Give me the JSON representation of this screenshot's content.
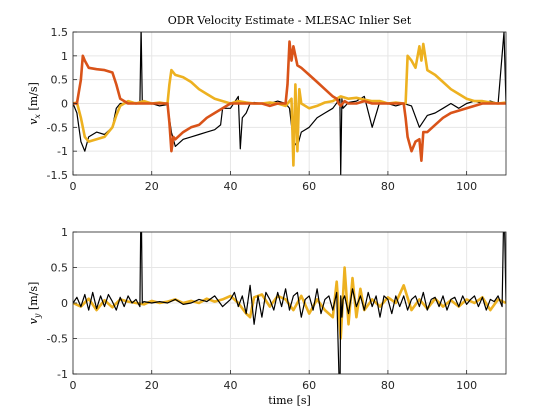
{
  "chart_data": [
    {
      "type": "line",
      "title": "ODR Velocity Estimate - MLESAC Inlier Set",
      "ylabel": "v_x [m/s]",
      "ylabel_main": "v",
      "ylabel_sub": "x",
      "ylabel_unit": "[m/s]",
      "xlabel": "",
      "xlim": [
        0,
        110
      ],
      "ylim": [
        -1.5,
        1.5
      ],
      "xticks": [
        0,
        20,
        40,
        60,
        80,
        100
      ],
      "yticks": [
        -1.5,
        -1,
        -0.5,
        0,
        0.5,
        1,
        1.5
      ],
      "xtick_labels": [
        "0",
        "20",
        "40",
        "60",
        "80",
        "100"
      ],
      "ytick_labels": [
        "-1.5",
        "-1",
        "-0.5",
        "0",
        "0.5",
        "1",
        "1.5"
      ],
      "grid": true,
      "series": [
        {
          "color": "#000000",
          "x": [
            0,
            1,
            2,
            3,
            4,
            6,
            8,
            10,
            11,
            12,
            14,
            16,
            17,
            17.3,
            17.6,
            18,
            20,
            22,
            24,
            25,
            26,
            28,
            30,
            32,
            34,
            36,
            37.5,
            38,
            40,
            42,
            42.5,
            43,
            44,
            45,
            46,
            48,
            50,
            52,
            54,
            55,
            56,
            57,
            58,
            60,
            62,
            64,
            66,
            67.8,
            68,
            68.3,
            68.6,
            70,
            72,
            74,
            76,
            78,
            80,
            82,
            84,
            86,
            88,
            90,
            92,
            94,
            96,
            98,
            100,
            102,
            104,
            106,
            108,
            109.5,
            110
          ],
          "y": [
            0,
            -0.2,
            -0.8,
            -1.0,
            -0.7,
            -0.6,
            -0.65,
            -0.5,
            -0.1,
            0.0,
            0.0,
            0.02,
            0.0,
            1.6,
            0.0,
            0.0,
            0.0,
            -0.05,
            -0.02,
            -0.6,
            -0.9,
            -0.75,
            -0.7,
            -0.65,
            -0.6,
            -0.55,
            -0.45,
            -0.1,
            -0.1,
            0.15,
            -0.95,
            -0.3,
            -0.2,
            0.0,
            0.02,
            0.0,
            0.0,
            0.05,
            0.0,
            -0.1,
            -0.8,
            -0.9,
            -0.6,
            -0.5,
            -0.3,
            -0.2,
            -0.1,
            0.1,
            -1.5,
            0.1,
            -0.1,
            0.02,
            0.05,
            0.15,
            -0.5,
            0.05,
            0.0,
            -0.05,
            0.0,
            -0.05,
            -0.5,
            -0.25,
            -0.2,
            -0.1,
            0.0,
            -0.1,
            0.0,
            0.05,
            0.0,
            0.05,
            0.0,
            1.5,
            0.0
          ]
        },
        {
          "color": "#edb120",
          "x": [
            0,
            1,
            2,
            3,
            4,
            6,
            8,
            10,
            11,
            12,
            14,
            16,
            18,
            20,
            22,
            23.5,
            24,
            24.5,
            25,
            26,
            28,
            30,
            32,
            34,
            36,
            38,
            40,
            42,
            44,
            46,
            48,
            50,
            52,
            54,
            55.5,
            56,
            56.5,
            57,
            57.5,
            58,
            60,
            62,
            64,
            66,
            68,
            70,
            72,
            74,
            76,
            78,
            80,
            82,
            84,
            84.5,
            85,
            86,
            87,
            88,
            88.5,
            89,
            90,
            92,
            94,
            96,
            98,
            100,
            102,
            104,
            106,
            108,
            110
          ],
          "y": [
            0,
            0.02,
            -0.3,
            -0.7,
            -0.8,
            -0.75,
            -0.7,
            -0.5,
            -0.25,
            -0.05,
            0.05,
            0.0,
            0.05,
            0.0,
            0.02,
            0.0,
            0.0,
            0.4,
            0.7,
            0.6,
            0.55,
            0.45,
            0.3,
            0.2,
            0.1,
            0.05,
            0.0,
            0.05,
            0.02,
            0.0,
            0.0,
            0.02,
            0.0,
            -0.05,
            0.1,
            -1.3,
            0.4,
            -1.0,
            0.3,
            0.0,
            -0.1,
            -0.05,
            0.02,
            0.05,
            0.15,
            0.1,
            0.12,
            0.08,
            0.05,
            0.05,
            0.0,
            0.02,
            0.0,
            0.0,
            1.0,
            0.9,
            0.75,
            1.2,
            0.9,
            1.25,
            0.7,
            0.6,
            0.45,
            0.3,
            0.2,
            0.1,
            0.05,
            0.05,
            0.02,
            0.0,
            0.02
          ]
        },
        {
          "color": "#d95319",
          "x": [
            0,
            1,
            2,
            2.5,
            3,
            4,
            6,
            8,
            10,
            11,
            12,
            14,
            16,
            18,
            20,
            22,
            24,
            24.5,
            25,
            25.5,
            26,
            28,
            30,
            32,
            34,
            36,
            38,
            40,
            42,
            44,
            46,
            48,
            50,
            52,
            54,
            54.5,
            55,
            55.5,
            56,
            57,
            58,
            60,
            62,
            64,
            66,
            67,
            67.5,
            68,
            69,
            70,
            72,
            74,
            76,
            78,
            80,
            82,
            84,
            84.5,
            85,
            86,
            87,
            88,
            88.5,
            89,
            90,
            92,
            94,
            96,
            98,
            100,
            102,
            104,
            106,
            108,
            110
          ],
          "y": [
            0,
            0.0,
            0.5,
            1.0,
            0.9,
            0.75,
            0.72,
            0.7,
            0.65,
            0.4,
            0.1,
            0.0,
            0.0,
            0.0,
            0.0,
            0.0,
            0.0,
            -0.4,
            -1.0,
            -0.7,
            -0.75,
            -0.6,
            -0.5,
            -0.45,
            -0.3,
            -0.2,
            -0.1,
            0.0,
            0.0,
            0.0,
            0.0,
            0.0,
            -0.05,
            0.0,
            0.0,
            0.4,
            1.3,
            0.9,
            1.2,
            0.8,
            0.75,
            0.6,
            0.45,
            0.3,
            0.15,
            0.1,
            0.0,
            -0.05,
            0.05,
            0.0,
            0.0,
            0.05,
            0.0,
            0.0,
            0.0,
            0.0,
            0.0,
            -0.3,
            -0.7,
            -1.0,
            -0.8,
            -0.75,
            -1.2,
            -0.6,
            -0.6,
            -0.45,
            -0.3,
            -0.2,
            -0.15,
            -0.1,
            -0.05,
            0.0,
            0.0,
            0.0,
            0.0
          ]
        }
      ]
    },
    {
      "type": "line",
      "title": "",
      "ylabel": "v_y [m/s]",
      "ylabel_main": "v",
      "ylabel_sub": "y",
      "ylabel_unit": "[m/s]",
      "xlabel": "time [s]",
      "xlim": [
        0,
        110
      ],
      "ylim": [
        -1,
        1
      ],
      "xticks": [
        0,
        20,
        40,
        60,
        80,
        100
      ],
      "yticks": [
        -1,
        -0.5,
        0,
        0.5,
        1
      ],
      "xtick_labels": [
        "0",
        "20",
        "40",
        "60",
        "80",
        "100"
      ],
      "ytick_labels": [
        "-1",
        "-0.5",
        "0",
        "0.5",
        "1"
      ],
      "grid": true,
      "series": [
        {
          "color": "#edb120",
          "x": [
            0,
            2,
            4,
            6,
            8,
            10,
            12,
            14,
            16,
            18,
            20,
            22,
            24,
            26,
            28,
            30,
            32,
            34,
            36,
            38,
            40,
            42,
            44,
            45,
            46,
            48,
            50,
            52,
            54,
            56,
            58,
            60,
            62,
            64,
            66,
            67,
            68,
            69,
            70,
            71,
            72,
            73,
            74,
            76,
            78,
            80,
            82,
            84,
            86,
            88,
            90,
            92,
            94,
            96,
            98,
            100,
            102,
            104,
            106,
            108,
            110
          ],
          "y": [
            0,
            -0.05,
            0.06,
            -0.1,
            0.04,
            -0.06,
            0.05,
            0.02,
            0.0,
            -0.02,
            0.03,
            0.0,
            0.02,
            0.05,
            0.0,
            0.03,
            0.0,
            0.06,
            0.02,
            0.05,
            0.1,
            0.0,
            -0.15,
            -0.2,
            0.08,
            0.12,
            -0.05,
            0.1,
            0.05,
            -0.1,
            0.1,
            -0.15,
            0.05,
            -0.1,
            -0.2,
            0.3,
            -0.5,
            0.5,
            -0.3,
            0.35,
            -0.2,
            0.2,
            -0.1,
            0.05,
            -0.05,
            0.08,
            0.0,
            0.25,
            -0.1,
            0.05,
            -0.08,
            0.06,
            -0.05,
            0.04,
            -0.05,
            0.05,
            0.0,
            0.08,
            -0.1,
            0.05,
            0.0
          ]
        },
        {
          "color": "#000000",
          "x": [
            0,
            1,
            2,
            3,
            4,
            5,
            6,
            7,
            8,
            9,
            10,
            11,
            12,
            13,
            14,
            15,
            16,
            17,
            17.3,
            17.6,
            18,
            20,
            22,
            24,
            26,
            28,
            30,
            32,
            34,
            36,
            38,
            40,
            41,
            42,
            43,
            44,
            45,
            46,
            47,
            48,
            49,
            50,
            51,
            52,
            53,
            54,
            55,
            56,
            57,
            58,
            59,
            60,
            61,
            62,
            63,
            64,
            65,
            66,
            67,
            67.8,
            68,
            68.3,
            68.6,
            69,
            70,
            71,
            72,
            73,
            74,
            75,
            76,
            77,
            78,
            79,
            80,
            81,
            82,
            83,
            84,
            85,
            86,
            87,
            88,
            89,
            90,
            91,
            92,
            93,
            94,
            95,
            96,
            97,
            98,
            99,
            100,
            101,
            102,
            103,
            104,
            105,
            106,
            107,
            108,
            109,
            109.5,
            110
          ],
          "y": [
            0,
            0.08,
            -0.05,
            0.12,
            -0.1,
            0.15,
            -0.08,
            0.1,
            -0.05,
            0.12,
            0.02,
            -0.1,
            0.08,
            -0.05,
            0.1,
            0.0,
            0.05,
            -0.05,
            1.6,
            0.0,
            0.02,
            0.0,
            0.02,
            0.0,
            0.05,
            -0.02,
            0.0,
            0.05,
            0.02,
            0.1,
            -0.05,
            0.05,
            0.15,
            -0.05,
            0.1,
            -0.15,
            0.25,
            -0.3,
            0.1,
            -0.2,
            0.15,
            0.05,
            -0.1,
            0.15,
            -0.05,
            0.2,
            -0.1,
            0.1,
            0.15,
            -0.2,
            0.05,
            0.1,
            -0.1,
            0.2,
            -0.15,
            0.05,
            0.1,
            -0.1,
            0.15,
            -1.5,
            0.1,
            -0.2,
            0.05,
            0.1,
            -0.15,
            0.2,
            -0.05,
            0.1,
            -0.1,
            0.15,
            -0.05,
            0.1,
            -0.2,
            0.1,
            0.05,
            -0.15,
            0.1,
            -0.05,
            0.1,
            -0.1,
            0.05,
            0.1,
            -0.05,
            0.15,
            -0.1,
            0.05,
            0.08,
            -0.05,
            0.1,
            -0.1,
            0.05,
            0.08,
            -0.05,
            0.1,
            -0.02,
            0.05,
            0.1,
            -0.05,
            0.08,
            -0.1,
            0.05,
            0.02,
            0.1,
            -0.05,
            1.5,
            0.0
          ]
        }
      ]
    }
  ]
}
